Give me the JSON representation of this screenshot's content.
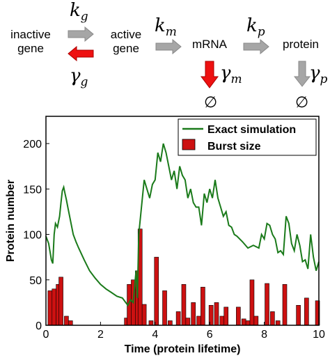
{
  "diagram": {
    "states": {
      "inactive": "inactive\ngene",
      "active": "active\ngene",
      "mrna": "mRNA",
      "protein": "protein"
    },
    "rates": {
      "kg": {
        "symbol": "k",
        "sub": "g"
      },
      "gamma_g": {
        "symbol": "γ",
        "sub": "g"
      },
      "km": {
        "symbol": "k",
        "sub": "m"
      },
      "gamma_m": {
        "symbol": "γ",
        "sub": "m"
      },
      "kp": {
        "symbol": "k",
        "sub": "p"
      },
      "gamma_p": {
        "symbol": "γ",
        "sub": "p"
      }
    },
    "empty_set": "∅",
    "colors": {
      "gray_arrow": "#a6a6a6",
      "red_arrow": "#ee1111"
    }
  },
  "chart_data": {
    "type": "bar+line",
    "xlabel": "Time (protein lifetime)",
    "ylabel": "Protein number",
    "xlim": [
      0,
      10
    ],
    "ylim": [
      0,
      230
    ],
    "xticks": [
      0,
      2,
      4,
      6,
      8,
      10
    ],
    "yticks": [
      0,
      50,
      100,
      150,
      200
    ],
    "legend_position": "top-right",
    "series": [
      {
        "name": "Exact simulation",
        "type": "line",
        "color": "#1a7a1a",
        "x": [
          0,
          0.1,
          0.2,
          0.25,
          0.3,
          0.35,
          0.42,
          0.5,
          0.55,
          0.6,
          0.65,
          0.7,
          0.75,
          0.8,
          0.9,
          1.0,
          1.1,
          1.2,
          1.4,
          1.6,
          1.8,
          2.0,
          2.2,
          2.4,
          2.6,
          2.8,
          2.9,
          3.0,
          3.1,
          3.2,
          3.3,
          3.35,
          3.4,
          3.5,
          3.6,
          3.7,
          3.8,
          3.9,
          4.0,
          4.1,
          4.2,
          4.3,
          4.4,
          4.5,
          4.6,
          4.7,
          4.8,
          4.9,
          5.0,
          5.1,
          5.2,
          5.3,
          5.4,
          5.5,
          5.6,
          5.7,
          5.8,
          5.9,
          6.0,
          6.1,
          6.2,
          6.3,
          6.4,
          6.5,
          6.6,
          6.7,
          6.8,
          6.9,
          7.0,
          7.2,
          7.4,
          7.6,
          7.8,
          7.9,
          8.0,
          8.1,
          8.2,
          8.3,
          8.4,
          8.5,
          8.6,
          8.7,
          8.8,
          8.9,
          9.0,
          9.1,
          9.2,
          9.3,
          9.4,
          9.5,
          9.6,
          9.7,
          9.8,
          9.9,
          10.0
        ],
        "y": [
          98,
          90,
          72,
          68,
          100,
          112,
          108,
          120,
          135,
          148,
          152,
          145,
          138,
          130,
          115,
          100,
          92,
          85,
          72,
          60,
          52,
          45,
          40,
          36,
          32,
          30,
          26,
          22,
          28,
          25,
          60,
          30,
          100,
          130,
          160,
          150,
          140,
          155,
          160,
          190,
          180,
          200,
          190,
          175,
          160,
          170,
          150,
          175,
          165,
          160,
          140,
          150,
          135,
          130,
          130,
          110,
          145,
          135,
          150,
          140,
          160,
          140,
          130,
          120,
          125,
          110,
          108,
          100,
          98,
          92,
          85,
          88,
          85,
          100,
          95,
          112,
          110,
          100,
          95,
          80,
          82,
          78,
          120,
          112,
          90,
          82,
          100,
          88,
          70,
          72,
          62,
          100,
          75,
          60,
          70
        ]
      },
      {
        "name": "Burst size",
        "type": "bar",
        "color": "#cc1111",
        "x": [
          0.15,
          0.3,
          0.45,
          0.55,
          0.75,
          0.9,
          2.95,
          3.05,
          3.2,
          3.35,
          3.45,
          3.6,
          3.85,
          4.05,
          4.35,
          4.55,
          4.85,
          5.05,
          5.2,
          5.4,
          5.6,
          5.75,
          6.05,
          6.25,
          6.45,
          6.6,
          7.05,
          7.25,
          7.4,
          7.55,
          7.7,
          8.1,
          8.3,
          8.5,
          8.75,
          9.25,
          9.55,
          9.95
        ],
        "values": [
          38,
          40,
          45,
          53,
          10,
          5,
          8,
          45,
          50,
          60,
          106,
          23,
          5,
          75,
          38,
          5,
          15,
          45,
          8,
          25,
          10,
          42,
          22,
          25,
          10,
          20,
          20,
          7,
          5,
          50,
          10,
          46,
          15,
          5,
          45,
          22,
          30,
          27
        ]
      }
    ]
  }
}
